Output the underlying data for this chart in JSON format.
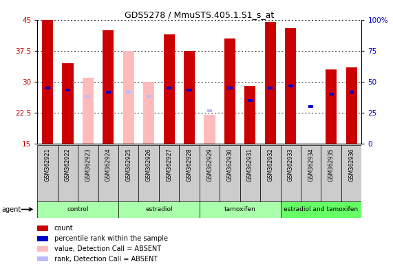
{
  "title": "GDS5278 / MmuSTS.405.1.S1_s_at",
  "samples": [
    "GSM362921",
    "GSM362922",
    "GSM362923",
    "GSM362924",
    "GSM362925",
    "GSM362926",
    "GSM362927",
    "GSM362928",
    "GSM362929",
    "GSM362930",
    "GSM362931",
    "GSM362932",
    "GSM362933",
    "GSM362934",
    "GSM362935",
    "GSM362936"
  ],
  "count_values": [
    45.0,
    34.5,
    null,
    42.5,
    null,
    null,
    41.5,
    37.5,
    null,
    40.5,
    29.0,
    44.5,
    43.0,
    null,
    33.0,
    33.5
  ],
  "rank_values": [
    28.5,
    28.0,
    null,
    27.5,
    null,
    null,
    28.5,
    28.0,
    null,
    28.5,
    25.5,
    28.5,
    29.0,
    24.0,
    27.0,
    27.5
  ],
  "absent_count_values": [
    null,
    null,
    31.0,
    null,
    37.5,
    30.0,
    null,
    null,
    22.0,
    null,
    null,
    null,
    null,
    null,
    null,
    null
  ],
  "absent_rank_values": [
    null,
    null,
    26.5,
    null,
    27.5,
    26.5,
    null,
    null,
    23.0,
    null,
    null,
    null,
    null,
    null,
    null,
    null
  ],
  "groups": [
    {
      "label": "control",
      "start": 0,
      "end": 4,
      "color": "#aaffaa"
    },
    {
      "label": "estradiol",
      "start": 4,
      "end": 8,
      "color": "#aaffaa"
    },
    {
      "label": "tamoxifen",
      "start": 8,
      "end": 12,
      "color": "#aaffaa"
    },
    {
      "label": "estradiol and tamoxifen",
      "start": 12,
      "end": 16,
      "color": "#66ff66"
    }
  ],
  "ylim_left": [
    15,
    45
  ],
  "ylim_right": [
    0,
    100
  ],
  "yticks_left": [
    15,
    22.5,
    30,
    37.5,
    45
  ],
  "yticks_right": [
    0,
    25,
    50,
    75,
    100
  ],
  "ytick_labels_left": [
    "15",
    "22.5",
    "30",
    "37.5",
    "45"
  ],
  "ytick_labels_right": [
    "0",
    "25",
    "50",
    "75",
    "100%"
  ],
  "count_color": "#cc0000",
  "rank_color": "#0000cc",
  "absent_count_color": "#ffbbbb",
  "absent_rank_color": "#bbbbff",
  "cell_bg_color": "#cccccc",
  "bar_width": 0.55
}
